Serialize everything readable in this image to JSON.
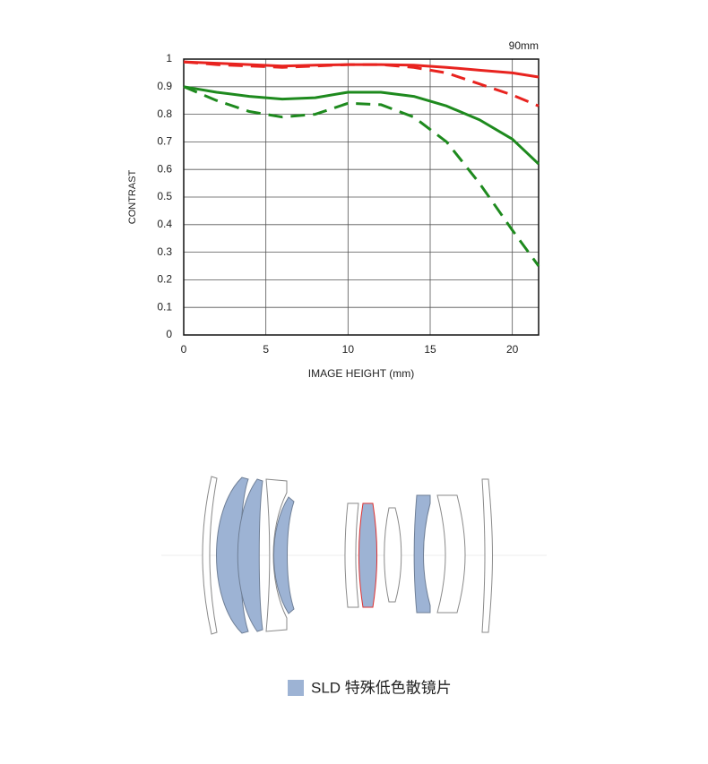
{
  "chart_data": {
    "type": "line",
    "title": "90mm",
    "x_label": "IMAGE HEIGHT (mm)",
    "y_label": "CONTRAST",
    "x": [
      0,
      2,
      4,
      6,
      8,
      10,
      12,
      14,
      16,
      18,
      20,
      21.6
    ],
    "series": [
      {
        "color": "#e8231f",
        "dashed": false,
        "values": [
          0.99,
          0.985,
          0.98,
          0.975,
          0.978,
          0.98,
          0.98,
          0.978,
          0.97,
          0.96,
          0.95,
          0.935
        ]
      },
      {
        "color": "#e8231f",
        "dashed": true,
        "values": [
          0.99,
          0.98,
          0.975,
          0.97,
          0.975,
          0.98,
          0.98,
          0.97,
          0.95,
          0.91,
          0.87,
          0.83
        ]
      },
      {
        "color": "#1e8a1e",
        "dashed": false,
        "values": [
          0.9,
          0.88,
          0.865,
          0.855,
          0.86,
          0.88,
          0.88,
          0.865,
          0.83,
          0.78,
          0.71,
          0.62
        ]
      },
      {
        "color": "#1e8a1e",
        "dashed": true,
        "values": [
          0.9,
          0.85,
          0.81,
          0.79,
          0.8,
          0.84,
          0.835,
          0.79,
          0.7,
          0.55,
          0.38,
          0.25
        ]
      }
    ],
    "xlim": [
      0,
      21.6
    ],
    "ylim": [
      0,
      1
    ],
    "xticks": [
      0,
      5,
      10,
      15,
      20
    ],
    "yticks": [
      0,
      0.1,
      0.2,
      0.3,
      0.4,
      0.5,
      0.6,
      0.7,
      0.8,
      0.9,
      1
    ],
    "grid": true
  },
  "lens_diagram": {
    "legend_label": "SLD 特殊低色散镜片"
  }
}
